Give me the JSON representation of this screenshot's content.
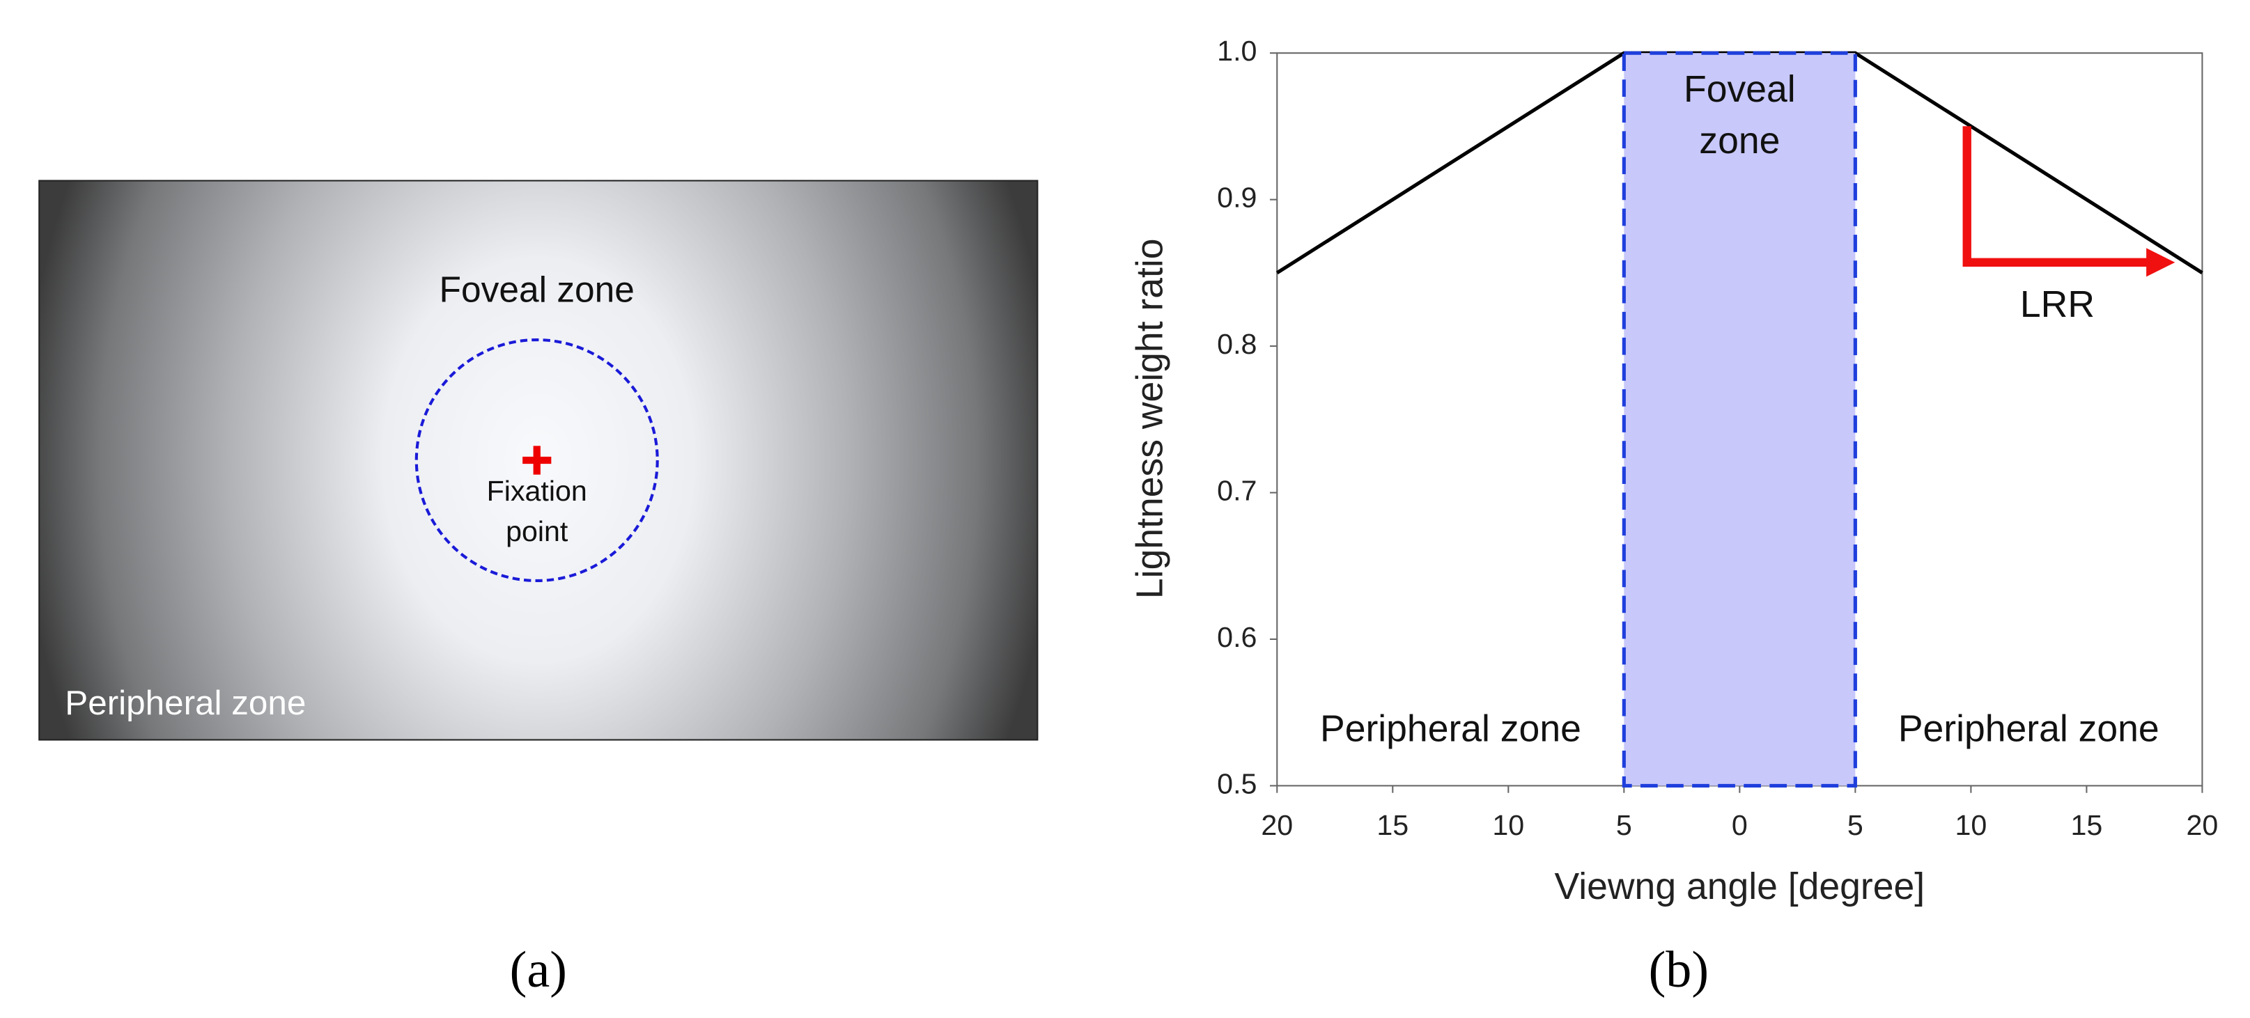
{
  "panel_a": {
    "caption": "(a)",
    "foveal_label": "Foveal zone",
    "fixation_label": [
      "Fixation",
      "point"
    ],
    "peripheral_label": "Peripheral zone"
  },
  "chart_data": {
    "type": "line",
    "caption": "(b)",
    "xlabel": "Viewng angle [degree]",
    "ylabel": "Lightness weight ratio",
    "series": [
      {
        "color": "#000000",
        "x": [
          -20,
          -5,
          5,
          20
        ],
        "values": [
          0.85,
          1.0,
          1.0,
          0.85
        ]
      }
    ],
    "xlim": [
      -20,
      20
    ],
    "ylim": [
      0.5,
      1.0
    ],
    "xticks": [
      {
        "value": -20,
        "label": "20"
      },
      {
        "value": -15,
        "label": "15"
      },
      {
        "value": -10,
        "label": "10"
      },
      {
        "value": -5,
        "label": "5"
      },
      0,
      5,
      10,
      15,
      20
    ],
    "yticks": [
      0.5,
      0.6,
      0.7,
      0.8,
      0.9,
      {
        "value": 1,
        "label": "1.0"
      }
    ],
    "shaded_region": {
      "xlim": [
        -5,
        5
      ],
      "color": "#c8c8fa",
      "border_color": "#1f3fdc",
      "label": [
        "Foveal",
        "zone"
      ]
    },
    "annotations": [
      "Peripheral zone",
      "Peripheral zone",
      "LRR"
    ]
  }
}
